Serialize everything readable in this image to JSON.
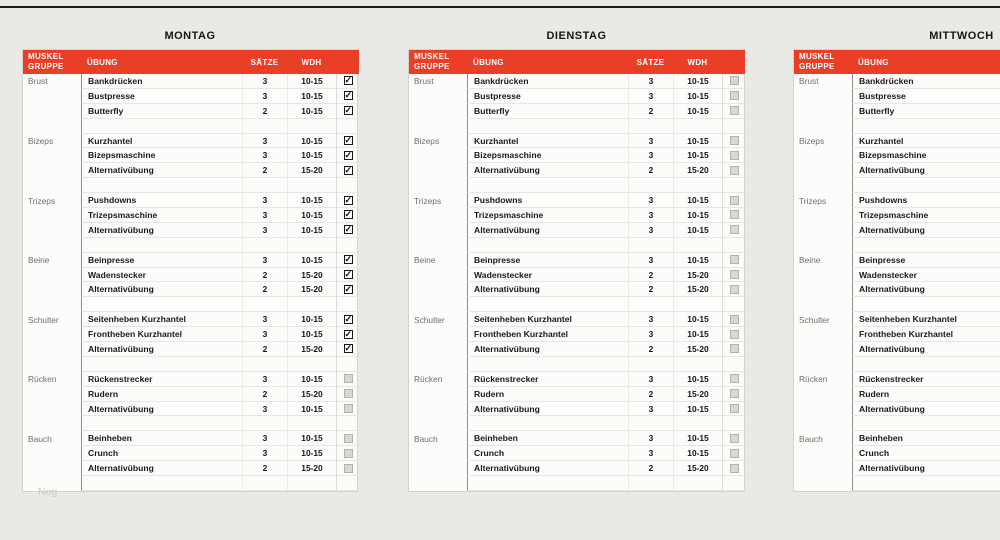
{
  "watermark": "Nog",
  "icons": {
    "checkmark": "✓"
  },
  "colors": {
    "header_red": "#ea3e27",
    "page_bg": "#eae9e5"
  },
  "columns": {
    "muscle": "MUSKEL\nGRUPPE",
    "exercise": "ÜBUNG",
    "sets": "SÄTZE",
    "reps": "WDH"
  },
  "days": [
    {
      "title": "MONTAG",
      "groups": [
        {
          "name": "Brust",
          "exercises": [
            {
              "name": "Bankdrücken",
              "sets": "3",
              "reps": "10-15",
              "checked": true
            },
            {
              "name": "Bustpresse",
              "sets": "3",
              "reps": "10-15",
              "checked": true
            },
            {
              "name": "Butterfly",
              "sets": "2",
              "reps": "10-15",
              "checked": true
            }
          ]
        },
        {
          "name": "Bizeps",
          "exercises": [
            {
              "name": "Kurzhantel",
              "sets": "3",
              "reps": "10-15",
              "checked": true
            },
            {
              "name": "Bizepsmaschine",
              "sets": "3",
              "reps": "10-15",
              "checked": true
            },
            {
              "name": "Alternativübung",
              "sets": "2",
              "reps": "15-20",
              "checked": true
            }
          ]
        },
        {
          "name": "Trizeps",
          "exercises": [
            {
              "name": "Pushdowns",
              "sets": "3",
              "reps": "10-15",
              "checked": true
            },
            {
              "name": "Trizepsmaschine",
              "sets": "3",
              "reps": "10-15",
              "checked": true
            },
            {
              "name": "Alternativübung",
              "sets": "3",
              "reps": "10-15",
              "checked": true
            }
          ]
        },
        {
          "name": "Beine",
          "exercises": [
            {
              "name": "Beinpresse",
              "sets": "3",
              "reps": "10-15",
              "checked": true
            },
            {
              "name": "Wadenstecker",
              "sets": "2",
              "reps": "15-20",
              "checked": true
            },
            {
              "name": "Alternativübung",
              "sets": "2",
              "reps": "15-20",
              "checked": true
            }
          ]
        },
        {
          "name": "Schulter",
          "exercises": [
            {
              "name": "Seitenheben Kurzhantel",
              "sets": "3",
              "reps": "10-15",
              "checked": true
            },
            {
              "name": "Frontheben Kurzhantel",
              "sets": "3",
              "reps": "10-15",
              "checked": true
            },
            {
              "name": "Alternativübung",
              "sets": "2",
              "reps": "15-20",
              "checked": true
            }
          ]
        },
        {
          "name": "Rücken",
          "exercises": [
            {
              "name": "Rückenstrecker",
              "sets": "3",
              "reps": "10-15",
              "checked": false
            },
            {
              "name": "Rudern",
              "sets": "2",
              "reps": "15-20",
              "checked": false
            },
            {
              "name": "Alternativübung",
              "sets": "3",
              "reps": "10-15",
              "checked": false
            }
          ]
        },
        {
          "name": "Bauch",
          "exercises": [
            {
              "name": "Beinheben",
              "sets": "3",
              "reps": "10-15",
              "checked": false
            },
            {
              "name": "Crunch",
              "sets": "3",
              "reps": "10-15",
              "checked": false
            },
            {
              "name": "Alternativübung",
              "sets": "2",
              "reps": "15-20",
              "checked": false
            }
          ]
        }
      ]
    },
    {
      "title": "DIENSTAG",
      "groups": [
        {
          "name": "Brust",
          "exercises": [
            {
              "name": "Bankdrücken",
              "sets": "3",
              "reps": "10-15",
              "checked": false
            },
            {
              "name": "Bustpresse",
              "sets": "3",
              "reps": "10-15",
              "checked": false
            },
            {
              "name": "Butterfly",
              "sets": "2",
              "reps": "10-15",
              "checked": false
            }
          ]
        },
        {
          "name": "Bizeps",
          "exercises": [
            {
              "name": "Kurzhantel",
              "sets": "3",
              "reps": "10-15",
              "checked": false
            },
            {
              "name": "Bizepsmaschine",
              "sets": "3",
              "reps": "10-15",
              "checked": false
            },
            {
              "name": "Alternativübung",
              "sets": "2",
              "reps": "15-20",
              "checked": false
            }
          ]
        },
        {
          "name": "Trizeps",
          "exercises": [
            {
              "name": "Pushdowns",
              "sets": "3",
              "reps": "10-15",
              "checked": false
            },
            {
              "name": "Trizepsmaschine",
              "sets": "3",
              "reps": "10-15",
              "checked": false
            },
            {
              "name": "Alternativübung",
              "sets": "3",
              "reps": "10-15",
              "checked": false
            }
          ]
        },
        {
          "name": "Beine",
          "exercises": [
            {
              "name": "Beinpresse",
              "sets": "3",
              "reps": "10-15",
              "checked": false
            },
            {
              "name": "Wadenstecker",
              "sets": "2",
              "reps": "15-20",
              "checked": false
            },
            {
              "name": "Alternativübung",
              "sets": "2",
              "reps": "15-20",
              "checked": false
            }
          ]
        },
        {
          "name": "Schulter",
          "exercises": [
            {
              "name": "Seitenheben Kurzhantel",
              "sets": "3",
              "reps": "10-15",
              "checked": false
            },
            {
              "name": "Frontheben Kurzhantel",
              "sets": "3",
              "reps": "10-15",
              "checked": false
            },
            {
              "name": "Alternativübung",
              "sets": "2",
              "reps": "15-20",
              "checked": false
            }
          ]
        },
        {
          "name": "Rücken",
          "exercises": [
            {
              "name": "Rückenstrecker",
              "sets": "3",
              "reps": "10-15",
              "checked": false
            },
            {
              "name": "Rudern",
              "sets": "2",
              "reps": "15-20",
              "checked": false
            },
            {
              "name": "Alternativübung",
              "sets": "3",
              "reps": "10-15",
              "checked": false
            }
          ]
        },
        {
          "name": "Bauch",
          "exercises": [
            {
              "name": "Beinheben",
              "sets": "3",
              "reps": "10-15",
              "checked": false
            },
            {
              "name": "Crunch",
              "sets": "3",
              "reps": "10-15",
              "checked": false
            },
            {
              "name": "Alternativübung",
              "sets": "2",
              "reps": "15-20",
              "checked": false
            }
          ]
        }
      ]
    },
    {
      "title": "MITTWOCH",
      "groups": [
        {
          "name": "Brust",
          "exercises": [
            {
              "name": "Bankdrücken"
            },
            {
              "name": "Bustpresse"
            },
            {
              "name": "Butterfly"
            }
          ]
        },
        {
          "name": "Bizeps",
          "exercises": [
            {
              "name": "Kurzhantel"
            },
            {
              "name": "Bizepsmaschine"
            },
            {
              "name": "Alternativübung"
            }
          ]
        },
        {
          "name": "Trizeps",
          "exercises": [
            {
              "name": "Pushdowns"
            },
            {
              "name": "Trizepsmaschine"
            },
            {
              "name": "Alternativübung"
            }
          ]
        },
        {
          "name": "Beine",
          "exercises": [
            {
              "name": "Beinpresse"
            },
            {
              "name": "Wadenstecker"
            },
            {
              "name": "Alternativübung"
            }
          ]
        },
        {
          "name": "Schulter",
          "exercises": [
            {
              "name": "Seitenheben Kurzhantel"
            },
            {
              "name": "Frontheben Kurzhantel"
            },
            {
              "name": "Alternativübung"
            }
          ]
        },
        {
          "name": "Rücken",
          "exercises": [
            {
              "name": "Rückenstrecker"
            },
            {
              "name": "Rudern"
            },
            {
              "name": "Alternativübung"
            }
          ]
        },
        {
          "name": "Bauch",
          "exercises": [
            {
              "name": "Beinheben"
            },
            {
              "name": "Crunch"
            },
            {
              "name": "Alternativübung"
            }
          ]
        }
      ]
    }
  ]
}
